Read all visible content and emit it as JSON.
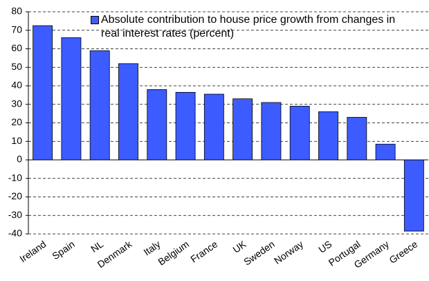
{
  "chart_data": {
    "type": "bar",
    "categories": [
      "Ireland",
      "Spain",
      "NL",
      "Denmark",
      "Italy",
      "Belgium",
      "France",
      "UK",
      "Sweden",
      "Norway",
      "US",
      "Portugal",
      "Germany",
      "Greece"
    ],
    "series": [
      {
        "name": "Absolute contribution to house price growth from changes in real interest rates (percent)",
        "color": "#3d5cff",
        "values": [
          72.5,
          66,
          59,
          52,
          38,
          36.5,
          35.5,
          33,
          31,
          29,
          26,
          23,
          8.5,
          -38.5
        ]
      }
    ],
    "ylim": [
      -40,
      80
    ],
    "yticks": [
      -40,
      -30,
      -20,
      -10,
      0,
      10,
      20,
      30,
      40,
      50,
      60,
      70,
      80
    ],
    "grid": true
  }
}
